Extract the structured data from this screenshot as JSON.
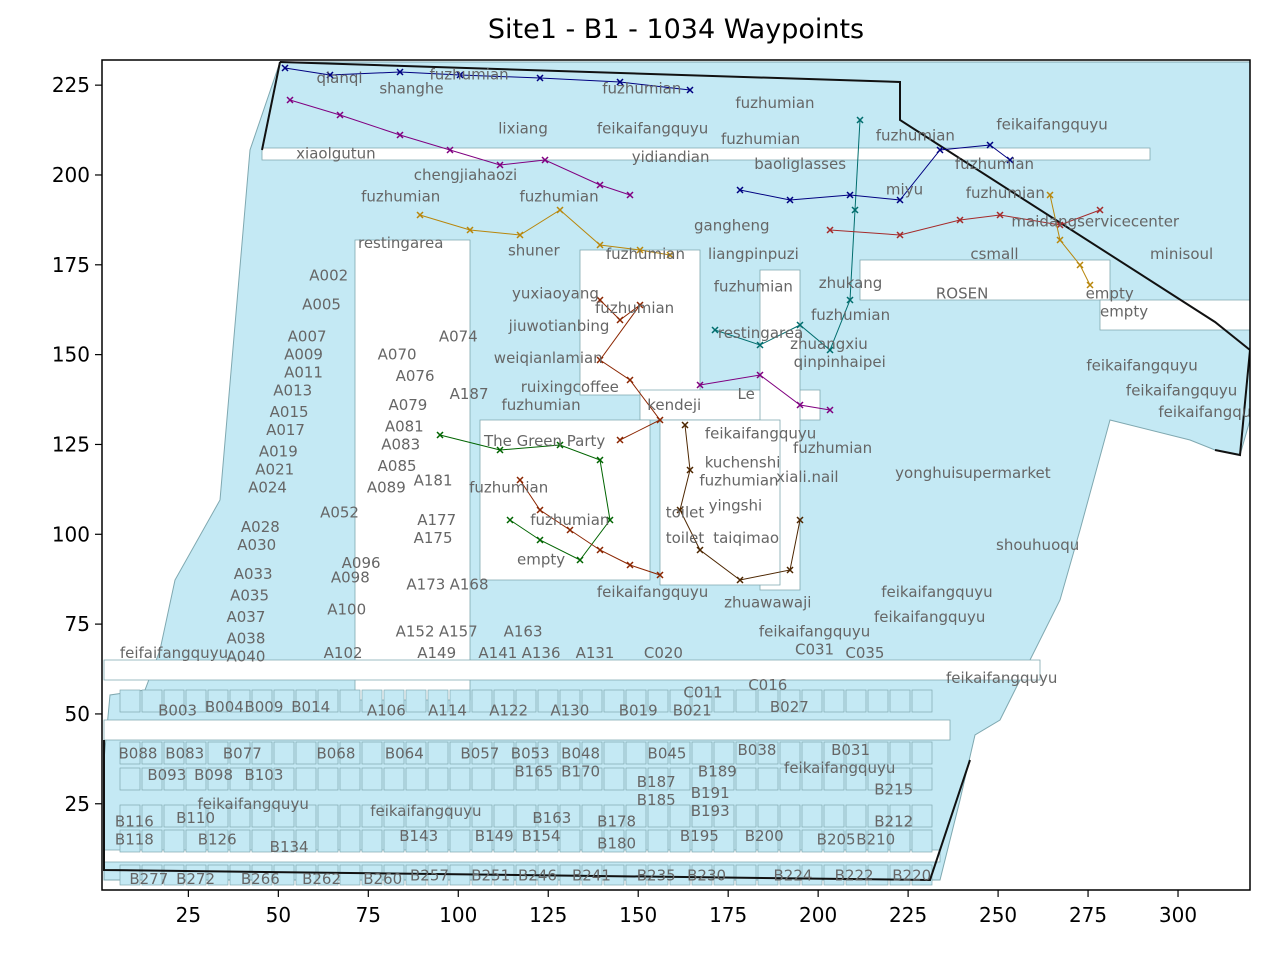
{
  "title": "Site1 - B1 - 1034 Waypoints",
  "axes": {
    "x_ticks": [
      25,
      50,
      75,
      100,
      125,
      150,
      175,
      200,
      225,
      250,
      275,
      300
    ],
    "y_ticks": [
      25,
      50,
      75,
      100,
      125,
      150,
      175,
      200,
      225
    ],
    "xlim": [
      1,
      320
    ],
    "ylim": [
      1,
      232
    ]
  },
  "colors": {
    "floor_fill": "#c4e9f4",
    "floor_stroke": "#7fa8b0",
    "outline": "#111111",
    "label": "#666666",
    "paths": [
      "#000080",
      "#800080",
      "#b8860b",
      "#8b2500",
      "#006400",
      "#4d2600",
      "#006d6d",
      "#a52a2a"
    ]
  },
  "labels": [
    {
      "text": "qianqi",
      "x": 67,
      "y": 227
    },
    {
      "text": "shanghe",
      "x": 87,
      "y": 224
    },
    {
      "text": "fuzhumian",
      "x": 103,
      "y": 228
    },
    {
      "text": "fuzhumian",
      "x": 151,
      "y": 224
    },
    {
      "text": "lixiang",
      "x": 118,
      "y": 213
    },
    {
      "text": "feikaifangquyu",
      "x": 154,
      "y": 213
    },
    {
      "text": "xiaolgutun",
      "x": 66,
      "y": 206
    },
    {
      "text": "yidiandian",
      "x": 159,
      "y": 205
    },
    {
      "text": "fuzhumian",
      "x": 188,
      "y": 220
    },
    {
      "text": "fuzhumian",
      "x": 184,
      "y": 210
    },
    {
      "text": "fuzhumian",
      "x": 227,
      "y": 211
    },
    {
      "text": "feikaifangquyu",
      "x": 265,
      "y": 214
    },
    {
      "text": "baoliglasses",
      "x": 195,
      "y": 203
    },
    {
      "text": "fuzhumian",
      "x": 249,
      "y": 203
    },
    {
      "text": "miyu",
      "x": 224,
      "y": 196
    },
    {
      "text": "fuzhumian",
      "x": 252,
      "y": 195
    },
    {
      "text": "chengjiahaozi",
      "x": 102,
      "y": 200
    },
    {
      "text": "fuzhumian",
      "x": 84,
      "y": 194
    },
    {
      "text": "fuzhumian",
      "x": 128,
      "y": 194
    },
    {
      "text": "restingarea",
      "x": 84,
      "y": 181
    },
    {
      "text": "shuner",
      "x": 121,
      "y": 179
    },
    {
      "text": "gangheng",
      "x": 176,
      "y": 186
    },
    {
      "text": "liangpinpuzi",
      "x": 182,
      "y": 178
    },
    {
      "text": "maidangservicecenter",
      "x": 277,
      "y": 187
    },
    {
      "text": "fuzhumian",
      "x": 152,
      "y": 178
    },
    {
      "text": "csmall",
      "x": 249,
      "y": 178
    },
    {
      "text": "minisoul",
      "x": 301,
      "y": 178
    },
    {
      "text": "A002",
      "x": 64,
      "y": 172
    },
    {
      "text": "yuxiaoyang",
      "x": 127,
      "y": 167
    },
    {
      "text": "fuzhumian",
      "x": 149,
      "y": 163
    },
    {
      "text": "fuzhumian",
      "x": 182,
      "y": 169
    },
    {
      "text": "zhukang",
      "x": 209,
      "y": 170
    },
    {
      "text": "ROSEN",
      "x": 240,
      "y": 167
    },
    {
      "text": "empty",
      "x": 281,
      "y": 167
    },
    {
      "text": "empty",
      "x": 285,
      "y": 162
    },
    {
      "text": "A005",
      "x": 62,
      "y": 164
    },
    {
      "text": "fuzhumian",
      "x": 209,
      "y": 161
    },
    {
      "text": "jiuwotianbing",
      "x": 128,
      "y": 158
    },
    {
      "text": "restingarea",
      "x": 184,
      "y": 156
    },
    {
      "text": "A007",
      "x": 58,
      "y": 155
    },
    {
      "text": "A074",
      "x": 100,
      "y": 155
    },
    {
      "text": "zhuangxiu",
      "x": 203,
      "y": 153
    },
    {
      "text": "A009",
      "x": 57,
      "y": 150
    },
    {
      "text": "A070",
      "x": 83,
      "y": 150
    },
    {
      "text": "weiqianlamian",
      "x": 125,
      "y": 149
    },
    {
      "text": "qinpinhaipei",
      "x": 206,
      "y": 148
    },
    {
      "text": "A011",
      "x": 57,
      "y": 145
    },
    {
      "text": "A076",
      "x": 88,
      "y": 144
    },
    {
      "text": "feikaifangquyu",
      "x": 290,
      "y": 147
    },
    {
      "text": "ruixingcoffee",
      "x": 131,
      "y": 141
    },
    {
      "text": "A013",
      "x": 54,
      "y": 140
    },
    {
      "text": "A187",
      "x": 103,
      "y": 139
    },
    {
      "text": "fuzhumian",
      "x": 123,
      "y": 136
    },
    {
      "text": "kendeji",
      "x": 160,
      "y": 136
    },
    {
      "text": "Le",
      "x": 180,
      "y": 139
    },
    {
      "text": "feikaifangquyu",
      "x": 301,
      "y": 140
    },
    {
      "text": "A079",
      "x": 86,
      "y": 136
    },
    {
      "text": "A015",
      "x": 53,
      "y": 134
    },
    {
      "text": "feikaifangquyu",
      "x": 310,
      "y": 134
    },
    {
      "text": "A081",
      "x": 85,
      "y": 130
    },
    {
      "text": "A017",
      "x": 52,
      "y": 129
    },
    {
      "text": "feikaifangquyu",
      "x": 184,
      "y": 128
    },
    {
      "text": "The Green Party",
      "x": 124,
      "y": 126
    },
    {
      "text": "A083",
      "x": 84,
      "y": 125
    },
    {
      "text": "A019",
      "x": 50,
      "y": 123
    },
    {
      "text": "fuzhumian",
      "x": 204,
      "y": 124
    },
    {
      "text": "A085",
      "x": 83,
      "y": 119
    },
    {
      "text": "A021",
      "x": 49,
      "y": 118
    },
    {
      "text": "kuchenshi",
      "x": 179,
      "y": 120
    },
    {
      "text": "xiali.nail",
      "x": 197,
      "y": 116
    },
    {
      "text": "yonghuisupermarket",
      "x": 243,
      "y": 117
    },
    {
      "text": "A181",
      "x": 93,
      "y": 115
    },
    {
      "text": "fuzhumian",
      "x": 178,
      "y": 115
    },
    {
      "text": "A024",
      "x": 47,
      "y": 113
    },
    {
      "text": "A089",
      "x": 80,
      "y": 113
    },
    {
      "text": "fuzhumian",
      "x": 114,
      "y": 113
    },
    {
      "text": "yingshi",
      "x": 177,
      "y": 108
    },
    {
      "text": "A052",
      "x": 67,
      "y": 106
    },
    {
      "text": "toilet",
      "x": 163,
      "y": 106
    },
    {
      "text": "A177",
      "x": 94,
      "y": 104
    },
    {
      "text": "fuzhumian",
      "x": 131,
      "y": 104
    },
    {
      "text": "A028",
      "x": 45,
      "y": 102
    },
    {
      "text": "A175",
      "x": 93,
      "y": 99
    },
    {
      "text": "toilet",
      "x": 163,
      "y": 99
    },
    {
      "text": "taiqimao",
      "x": 180,
      "y": 99
    },
    {
      "text": "A030",
      "x": 44,
      "y": 97
    },
    {
      "text": "shouhuoqu",
      "x": 261,
      "y": 97
    },
    {
      "text": "A096",
      "x": 73,
      "y": 92
    },
    {
      "text": "empty",
      "x": 123,
      "y": 93
    },
    {
      "text": "A033",
      "x": 43,
      "y": 89
    },
    {
      "text": "A098",
      "x": 70,
      "y": 88
    },
    {
      "text": "A173",
      "x": 91,
      "y": 86
    },
    {
      "text": "A168",
      "x": 103,
      "y": 86
    },
    {
      "text": "feikaifangquyu",
      "x": 154,
      "y": 84
    },
    {
      "text": "feikaifangquyu",
      "x": 233,
      "y": 84
    },
    {
      "text": "A035",
      "x": 42,
      "y": 83
    },
    {
      "text": "zhuawawaji",
      "x": 186,
      "y": 81
    },
    {
      "text": "A100",
      "x": 69,
      "y": 79
    },
    {
      "text": "feikaifangquyu",
      "x": 231,
      "y": 77
    },
    {
      "text": "A037",
      "x": 41,
      "y": 77
    },
    {
      "text": "A152",
      "x": 88,
      "y": 73
    },
    {
      "text": "A157",
      "x": 100,
      "y": 73
    },
    {
      "text": "A163",
      "x": 118,
      "y": 73
    },
    {
      "text": "feikaifangquyu",
      "x": 199,
      "y": 73
    },
    {
      "text": "A038",
      "x": 41,
      "y": 71
    },
    {
      "text": "feifaifangquyu",
      "x": 21,
      "y": 67
    },
    {
      "text": "A102",
      "x": 68,
      "y": 67
    },
    {
      "text": "A149",
      "x": 94,
      "y": 67
    },
    {
      "text": "A141",
      "x": 111,
      "y": 67
    },
    {
      "text": "A136",
      "x": 123,
      "y": 67
    },
    {
      "text": "A131",
      "x": 138,
      "y": 67
    },
    {
      "text": "C020",
      "x": 157,
      "y": 67
    },
    {
      "text": "C031",
      "x": 199,
      "y": 68
    },
    {
      "text": "C035",
      "x": 213,
      "y": 67
    },
    {
      "text": "A040",
      "x": 41,
      "y": 66
    },
    {
      "text": "feikaifangquyu",
      "x": 251,
      "y": 60
    },
    {
      "text": "C016",
      "x": 186,
      "y": 58
    },
    {
      "text": "C011",
      "x": 168,
      "y": 56
    },
    {
      "text": "B003",
      "x": 22,
      "y": 51
    },
    {
      "text": "B004",
      "x": 35,
      "y": 52
    },
    {
      "text": "B009",
      "x": 46,
      "y": 52
    },
    {
      "text": "B014",
      "x": 59,
      "y": 52
    },
    {
      "text": "A106",
      "x": 80,
      "y": 51
    },
    {
      "text": "A114",
      "x": 97,
      "y": 51
    },
    {
      "text": "A122",
      "x": 114,
      "y": 51
    },
    {
      "text": "A130",
      "x": 131,
      "y": 51
    },
    {
      "text": "B019",
      "x": 150,
      "y": 51
    },
    {
      "text": "B021",
      "x": 165,
      "y": 51
    },
    {
      "text": "B027",
      "x": 192,
      "y": 52
    },
    {
      "text": "B088",
      "x": 11,
      "y": 39
    },
    {
      "text": "B083",
      "x": 24,
      "y": 39
    },
    {
      "text": "B077",
      "x": 40,
      "y": 39
    },
    {
      "text": "B068",
      "x": 66,
      "y": 39
    },
    {
      "text": "B064",
      "x": 85,
      "y": 39
    },
    {
      "text": "B057",
      "x": 106,
      "y": 39
    },
    {
      "text": "B053",
      "x": 120,
      "y": 39
    },
    {
      "text": "B048",
      "x": 134,
      "y": 39
    },
    {
      "text": "B045",
      "x": 158,
      "y": 39
    },
    {
      "text": "B038",
      "x": 183,
      "y": 40
    },
    {
      "text": "B031",
      "x": 209,
      "y": 40
    },
    {
      "text": "B189",
      "x": 172,
      "y": 34
    },
    {
      "text": "feikaifangquyu",
      "x": 206,
      "y": 35
    },
    {
      "text": "B093",
      "x": 19,
      "y": 33
    },
    {
      "text": "B098",
      "x": 32,
      "y": 33
    },
    {
      "text": "B103",
      "x": 46,
      "y": 33
    },
    {
      "text": "B165",
      "x": 121,
      "y": 34
    },
    {
      "text": "B170",
      "x": 134,
      "y": 34
    },
    {
      "text": "B187",
      "x": 155,
      "y": 31
    },
    {
      "text": "B191",
      "x": 170,
      "y": 28
    },
    {
      "text": "B215",
      "x": 221,
      "y": 29
    },
    {
      "text": "feikaifangquyu",
      "x": 43,
      "y": 25
    },
    {
      "text": "B185",
      "x": 155,
      "y": 26
    },
    {
      "text": "feikaifangquyu",
      "x": 91,
      "y": 23
    },
    {
      "text": "B193",
      "x": 170,
      "y": 23
    },
    {
      "text": "B116",
      "x": 10,
      "y": 20
    },
    {
      "text": "B110",
      "x": 27,
      "y": 21
    },
    {
      "text": "B163",
      "x": 126,
      "y": 21
    },
    {
      "text": "B178",
      "x": 144,
      "y": 20
    },
    {
      "text": "B212",
      "x": 221,
      "y": 20
    },
    {
      "text": "B118",
      "x": 10,
      "y": 15
    },
    {
      "text": "B126",
      "x": 33,
      "y": 15
    },
    {
      "text": "B143",
      "x": 89,
      "y": 16
    },
    {
      "text": "B149",
      "x": 110,
      "y": 16
    },
    {
      "text": "B154",
      "x": 123,
      "y": 16
    },
    {
      "text": "B195",
      "x": 167,
      "y": 16
    },
    {
      "text": "B200",
      "x": 185,
      "y": 16
    },
    {
      "text": "B205",
      "x": 205,
      "y": 15
    },
    {
      "text": "B210",
      "x": 216,
      "y": 15
    },
    {
      "text": "B134",
      "x": 53,
      "y": 13
    },
    {
      "text": "B180",
      "x": 144,
      "y": 14
    },
    {
      "text": "B277",
      "x": 14,
      "y": 4
    },
    {
      "text": "B272",
      "x": 27,
      "y": 4
    },
    {
      "text": "B266",
      "x": 45,
      "y": 4
    },
    {
      "text": "B262",
      "x": 62,
      "y": 4
    },
    {
      "text": "B260",
      "x": 79,
      "y": 4
    },
    {
      "text": "B257",
      "x": 92,
      "y": 5
    },
    {
      "text": "B251",
      "x": 109,
      "y": 5
    },
    {
      "text": "B246",
      "x": 122,
      "y": 5
    },
    {
      "text": "B241",
      "x": 137,
      "y": 5
    },
    {
      "text": "B235",
      "x": 155,
      "y": 5
    },
    {
      "text": "B230",
      "x": 169,
      "y": 5
    },
    {
      "text": "B224",
      "x": 193,
      "y": 5
    },
    {
      "text": "B222",
      "x": 210,
      "y": 5
    },
    {
      "text": "B220",
      "x": 226,
      "y": 5
    }
  ]
}
